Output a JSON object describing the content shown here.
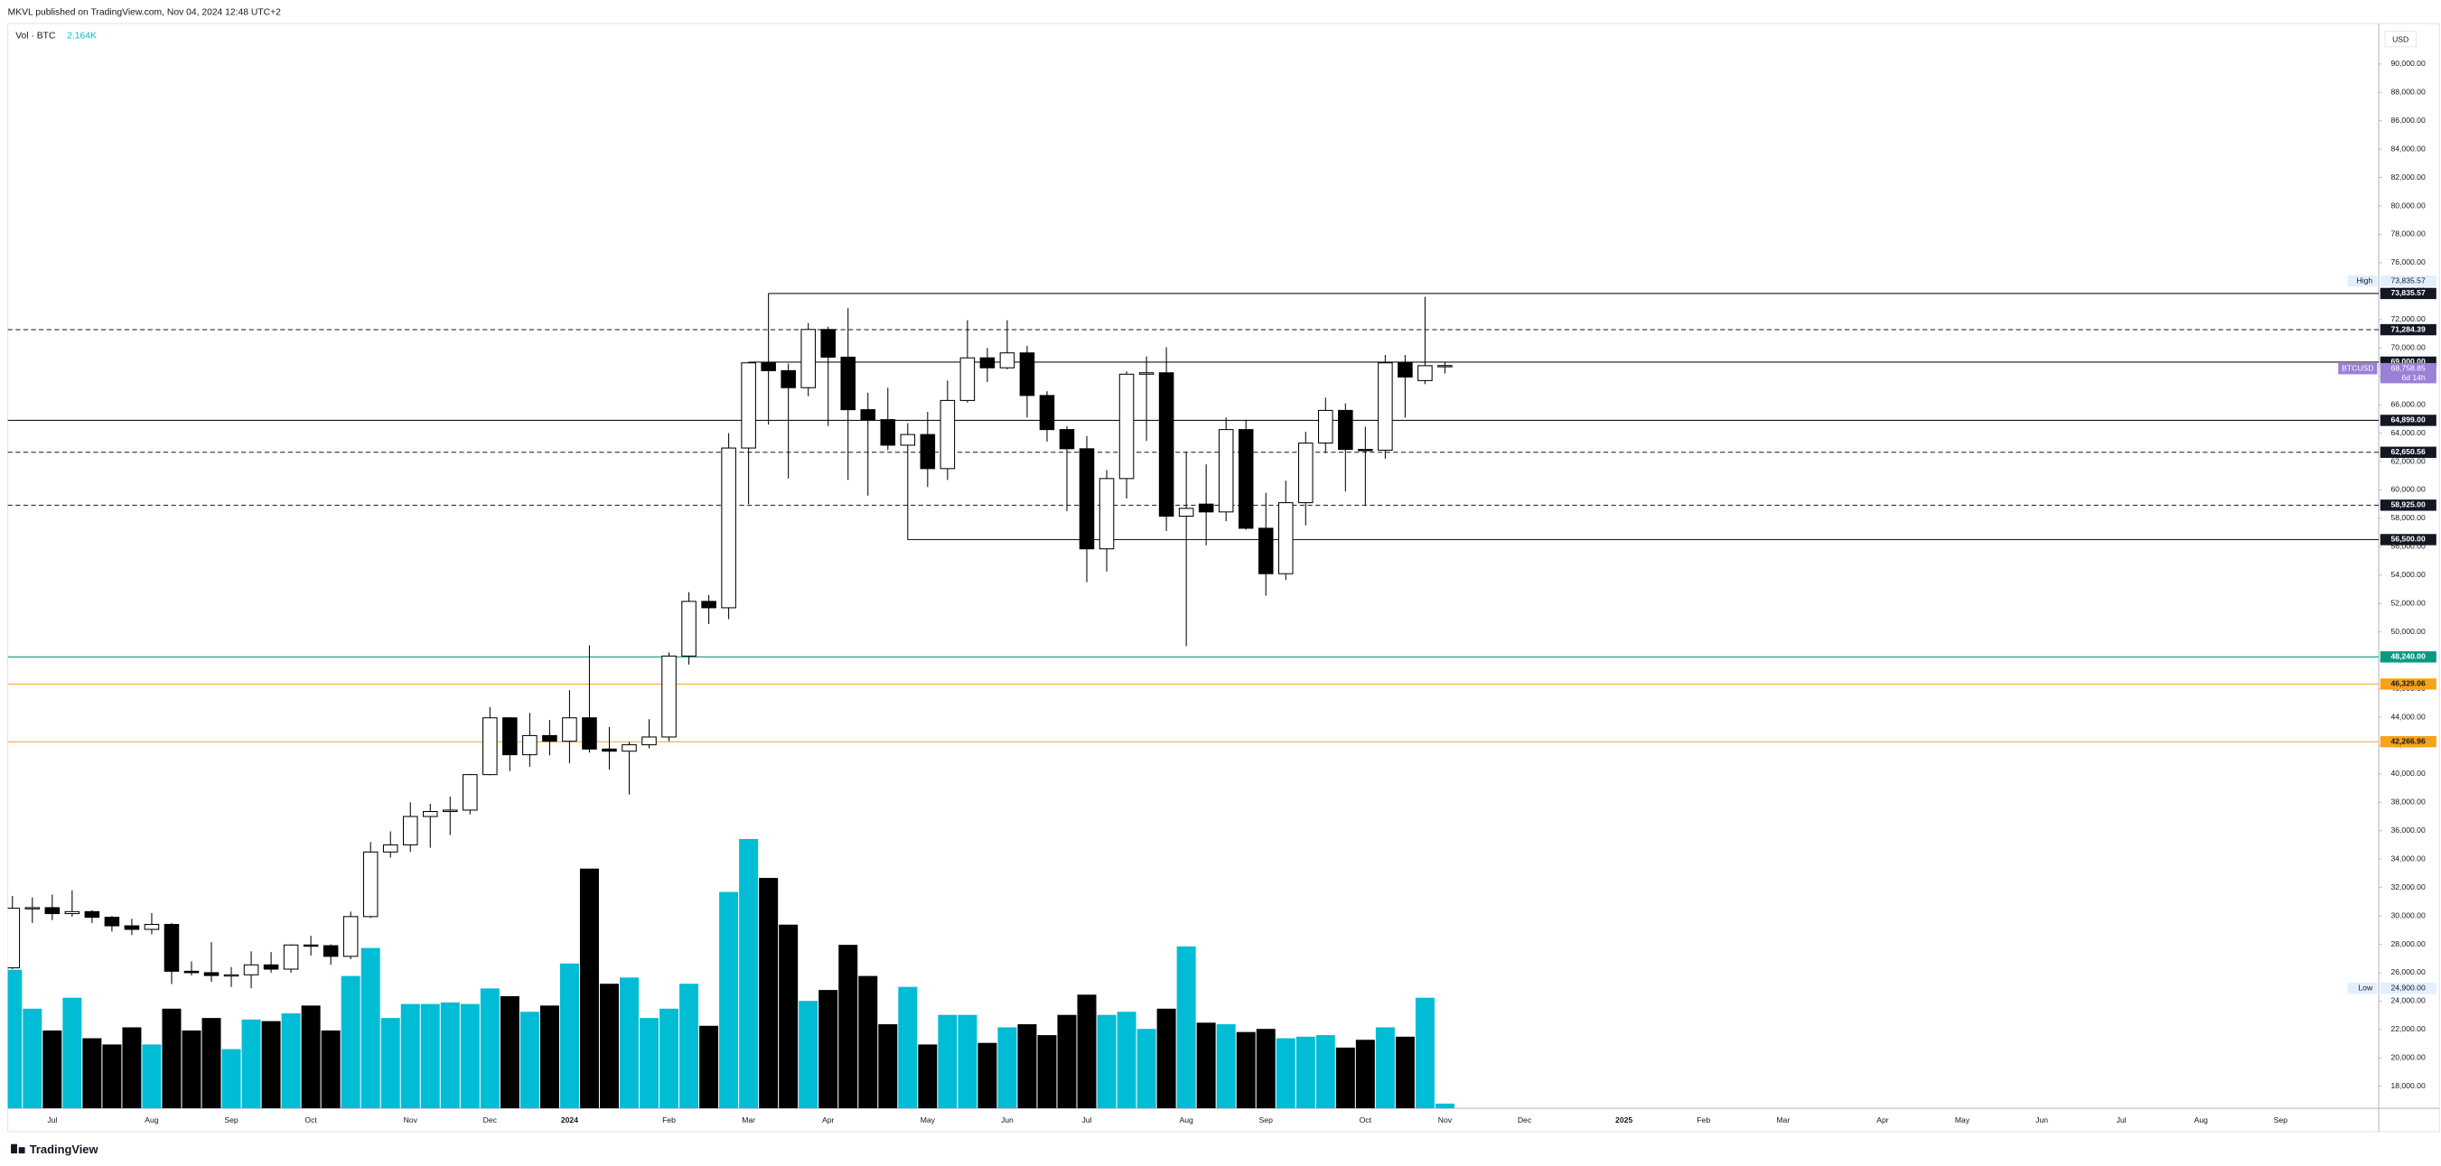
{
  "header": {
    "publisher": "MKVL published on TradingView.com, Nov 04, 2024 12:48 UTC+2",
    "currency": "USD",
    "footer": "TradingView"
  },
  "chart_data": {
    "type": "candlestick",
    "categories": [
      null,
      null,
      "Jul",
      null,
      null,
      null,
      null,
      "Aug",
      null,
      null,
      null,
      "Sep",
      null,
      null,
      null,
      "Oct",
      null,
      null,
      null,
      null,
      "Nov",
      null,
      null,
      null,
      "Dec",
      null,
      null,
      null,
      "2024",
      null,
      null,
      null,
      null,
      "Feb",
      null,
      null,
      null,
      "Mar",
      null,
      null,
      null,
      "Apr",
      null,
      null,
      null,
      null,
      "May",
      null,
      null,
      null,
      "Jun",
      null,
      null,
      null,
      "Jul",
      null,
      null,
      null,
      null,
      "Aug",
      null,
      null,
      null,
      "Sep",
      null,
      null,
      null,
      null,
      "Oct",
      null,
      null,
      null,
      "Nov",
      null,
      null,
      null,
      "Dec",
      null,
      null,
      null,
      null,
      "2025",
      null,
      null,
      null,
      "Feb",
      null,
      null,
      null,
      "Mar",
      null,
      null,
      null,
      null,
      "Apr",
      null,
      null,
      null,
      "May",
      null,
      null,
      null,
      "Jun",
      null,
      null,
      null,
      "Jul",
      null,
      null,
      null,
      "Aug",
      null,
      null,
      null,
      "Sep",
      null,
      null,
      null,
      null,
      null
    ],
    "open": [
      26340,
      30540,
      30580,
      30160,
      30300,
      29900,
      29300,
      29050,
      29400,
      26100,
      26000,
      25800,
      25850,
      26550,
      26250,
      27950,
      27900,
      27150,
      29950,
      34500,
      35000,
      37000,
      37350,
      37450,
      39950,
      43950,
      41350,
      42700,
      42300,
      43950,
      41750,
      41600,
      42050,
      42600,
      48300,
      52150,
      51700,
      62950,
      68950,
      68400,
      67200,
      71300,
      69350,
      65650,
      64950,
      63150,
      63900,
      61500,
      66300,
      69300,
      68600,
      69650,
      66650,
      64250,
      62900,
      55850,
      60800,
      68150,
      68250,
      58150,
      59000,
      58450,
      64250,
      57300,
      54100,
      59100,
      63300,
      65600,
      62850,
      62800,
      68950,
      67700,
      68750,
      null,
      null,
      null,
      null,
      null,
      null,
      null,
      null,
      null,
      null,
      null,
      null,
      null,
      null,
      null,
      null,
      null,
      null,
      null,
      null,
      null,
      null,
      null,
      null,
      null,
      null,
      null,
      null,
      null,
      null,
      null,
      null,
      null,
      null,
      null,
      null,
      null,
      null,
      null,
      null,
      null,
      null,
      null,
      null,
      null,
      null,
      null
    ],
    "high": [
      31400,
      31300,
      31500,
      31800,
      30400,
      30000,
      29800,
      30200,
      29500,
      26800,
      28150,
      26400,
      27500,
      27450,
      28000,
      28600,
      28000,
      30300,
      35200,
      35950,
      38000,
      37900,
      38400,
      40000,
      44700,
      44000,
      44300,
      43800,
      45900,
      49050,
      43300,
      42250,
      43850,
      48550,
      52800,
      52600,
      64000,
      69000,
      73835.57,
      68900,
      71750,
      71500,
      72800,
      66850,
      67200,
      64700,
      65500,
      67700,
      71950,
      70000,
      71950,
      70150,
      66950,
      64500,
      63800,
      61400,
      68350,
      69400,
      70050,
      62700,
      61800,
      65100,
      64950,
      59800,
      60650,
      64100,
      66500,
      66100,
      64450,
      69500,
      69500,
      73600,
      69000,
      null,
      null,
      null,
      null,
      null,
      null,
      null,
      null,
      null,
      null,
      null,
      null,
      null,
      null,
      null,
      null,
      null,
      null,
      null,
      null,
      null,
      null,
      null,
      null,
      null,
      null,
      null,
      null,
      null,
      null,
      null,
      null,
      null,
      null,
      null,
      null,
      null,
      null,
      null,
      null,
      null,
      null,
      null,
      null,
      null,
      null,
      null
    ],
    "low": [
      26260,
      29500,
      29700,
      29950,
      29500,
      28900,
      28650,
      28700,
      25200,
      25800,
      25350,
      25000,
      24900,
      26000,
      26000,
      27200,
      26550,
      26950,
      29850,
      34100,
      34500,
      34800,
      35700,
      37150,
      39900,
      40200,
      40500,
      41300,
      40750,
      41500,
      40300,
      38550,
      41800,
      42300,
      47700,
      50550,
      50900,
      59000,
      64600,
      60800,
      66600,
      64500,
      60700,
      59600,
      62800,
      56500,
      60200,
      60700,
      66150,
      67600,
      68500,
      65100,
      63400,
      58500,
      53500,
      54250,
      59400,
      63450,
      57100,
      49000,
      56100,
      57800,
      57200,
      52550,
      53650,
      57500,
      62600,
      59900,
      58900,
      62200,
      65100,
      67450,
      68200,
      null,
      null,
      null,
      null,
      null,
      null,
      null,
      null,
      null,
      null,
      null,
      null,
      null,
      null,
      null,
      null,
      null,
      null,
      null,
      null,
      null,
      null,
      null,
      null,
      null,
      null,
      null,
      null,
      null,
      null,
      null,
      null,
      null,
      null,
      null,
      null,
      null,
      null,
      null,
      null,
      null,
      null,
      null,
      null,
      null,
      null,
      null
    ],
    "close": [
      30540,
      30580,
      30160,
      30300,
      29900,
      29300,
      29050,
      29400,
      26100,
      26000,
      25800,
      25850,
      26550,
      26250,
      27950,
      27900,
      27150,
      29950,
      34500,
      35000,
      37000,
      37350,
      37450,
      39950,
      43950,
      41350,
      42700,
      42300,
      43950,
      41750,
      41600,
      42050,
      42600,
      48300,
      52150,
      51700,
      62950,
      68950,
      68400,
      67200,
      71300,
      69350,
      65650,
      64950,
      63150,
      63900,
      61500,
      66300,
      69300,
      68600,
      69650,
      66650,
      64250,
      62900,
      55850,
      60800,
      68150,
      68250,
      58150,
      58700,
      58450,
      64250,
      57300,
      54100,
      59100,
      63300,
      65600,
      62850,
      62800,
      68950,
      67950,
      68750,
      68758.85,
      null,
      null,
      null,
      null,
      null,
      null,
      null,
      null,
      null,
      null,
      null,
      null,
      null,
      null,
      null,
      null,
      null,
      null,
      null,
      null,
      null,
      null,
      null,
      null,
      null,
      null,
      null,
      null,
      null,
      null,
      null,
      null,
      null,
      null,
      null,
      null,
      null,
      null,
      null,
      null,
      null,
      null,
      null,
      null,
      null,
      null,
      null
    ],
    "up_color": "#ffffff",
    "down_color": "#000000",
    "border_color": "#000000",
    "volume": {
      "name": "Vol · BTC",
      "up_color": "#00bcd4",
      "down_color": "#000000",
      "values": [
        64080,
        46080,
        36000,
        51120,
        32400,
        29520,
        37440,
        29520,
        46080,
        36000,
        41760,
        27360,
        41040,
        40320,
        43920,
        47520,
        36000,
        61200,
        74160,
        41760,
        48240,
        48240,
        48960,
        48240,
        55440,
        51840,
        44640,
        47520,
        66960,
        110880,
        57600,
        60480,
        41760,
        46080,
        57600,
        38160,
        100080,
        124560,
        106560,
        84960,
        49680,
        54720,
        75600,
        61200,
        38880,
        56160,
        29520,
        43200,
        43200,
        30240,
        37440,
        38880,
        33840,
        43200,
        52560,
        43200,
        44640,
        36720,
        46080,
        74880,
        39600,
        38880,
        35280,
        36720,
        32400,
        33120,
        33840,
        28080,
        31680,
        37440,
        33120,
        51120,
        2164,
        null,
        null,
        null,
        null,
        null,
        null,
        null,
        null,
        null,
        null,
        null,
        null,
        null,
        null,
        null,
        null,
        null,
        null,
        null,
        null,
        null,
        null,
        null,
        null,
        null,
        null,
        null,
        null,
        null,
        null,
        null,
        null,
        null,
        null,
        null,
        null,
        null,
        null,
        null,
        null,
        null,
        null,
        null,
        null,
        null,
        null,
        null
      ],
      "value_labels": [
        null,
        null,
        null,
        null,
        null,
        null,
        null,
        null,
        null,
        null,
        null,
        null,
        null,
        null,
        null,
        null,
        null,
        null,
        null,
        null,
        null,
        null,
        null,
        null,
        null,
        null,
        null,
        null,
        null,
        null,
        null,
        null,
        null,
        null,
        null,
        null,
        null,
        null,
        null,
        null,
        null,
        null,
        null,
        null,
        null,
        null,
        null,
        null,
        null,
        null,
        null,
        null,
        null,
        null,
        null,
        null,
        null,
        null,
        null,
        null,
        null,
        null,
        null,
        null,
        null,
        null,
        null,
        null,
        null,
        null,
        null,
        null,
        "2.164K",
        null,
        null,
        null,
        null,
        null,
        null,
        null,
        null,
        null,
        null,
        null,
        null,
        null,
        null,
        null,
        null,
        null,
        null,
        null,
        null,
        null,
        null,
        null,
        null,
        null,
        null,
        null,
        null,
        null,
        null,
        null,
        null,
        null,
        null,
        null,
        null,
        null,
        null,
        null,
        null,
        null,
        null,
        null,
        null,
        null,
        null,
        null
      ],
      "label_color": "#00bcd4"
    },
    "ylim": [
      16450,
      92850
    ],
    "yticks": [
      {
        "value": 18000,
        "label": "18,000.00"
      },
      {
        "value": 20000,
        "label": "20,000.00"
      },
      {
        "value": 22000,
        "label": "22,000.00"
      },
      {
        "value": 24000,
        "label": "24,000.00"
      },
      {
        "value": 26000,
        "label": "26,000.00"
      },
      {
        "value": 28000,
        "label": "28,000.00"
      },
      {
        "value": 30000,
        "label": "30,000.00"
      },
      {
        "value": 32000,
        "label": "32,000.00"
      },
      {
        "value": 34000,
        "label": "34,000.00"
      },
      {
        "value": 36000,
        "label": "36,000.00"
      },
      {
        "value": 38000,
        "label": "38,000.00"
      },
      {
        "value": 40000,
        "label": "40,000.00"
      },
      {
        "value": 42000,
        "label": "42,000.00"
      },
      {
        "value": 44000,
        "label": "44,000.00"
      },
      {
        "value": 46000,
        "label": "46,000.00"
      },
      {
        "value": 48000,
        "label": "48,000.00"
      },
      {
        "value": 50000,
        "label": "50,000.00"
      },
      {
        "value": 52000,
        "label": "52,000.00"
      },
      {
        "value": 54000,
        "label": "54,000.00"
      },
      {
        "value": 56000,
        "label": "56,000.00"
      },
      {
        "value": 58000,
        "label": "58,000.00"
      },
      {
        "value": 60000,
        "label": "60,000.00"
      },
      {
        "value": 62000,
        "label": "62,000.00"
      },
      {
        "value": 64000,
        "label": "64,000.00"
      },
      {
        "value": 66000,
        "label": "66,000.00"
      },
      {
        "value": 68000,
        "label": "68,000.00"
      },
      {
        "value": 70000,
        "label": "70,000.00"
      },
      {
        "value": 72000,
        "label": "72,000.00"
      },
      {
        "value": 74000,
        "label": "74,000.00"
      },
      {
        "value": 76000,
        "label": "76,000.00"
      },
      {
        "value": 78000,
        "label": "78,000.00"
      },
      {
        "value": 80000,
        "label": "80,000.00"
      },
      {
        "value": 82000,
        "label": "82,000.00"
      },
      {
        "value": 84000,
        "label": "84,000.00"
      },
      {
        "value": 86000,
        "label": "86,000.00"
      },
      {
        "value": 88000,
        "label": "88,000.00"
      },
      {
        "value": 90000,
        "label": "90,000.00"
      }
    ],
    "grid": false,
    "levels": [
      {
        "value": 73835.57,
        "label": "73,835.57",
        "style": "solid",
        "color": "#131722",
        "label_bg": "#131722",
        "label_color": "#ffffff"
      },
      {
        "value": 71284.39,
        "label": "71,284.39",
        "style": "dashed",
        "color": "#131722",
        "label_bg": "#131722",
        "label_color": "#ffffff"
      },
      {
        "value": 69000,
        "label": "69,000.00",
        "style": "solid",
        "color": "#131722",
        "label_bg": "#131722",
        "label_color": "#ffffff"
      },
      {
        "value": 64899,
        "label": "64,899.00",
        "style": "solid",
        "color": "#131722",
        "label_bg": "#131722",
        "label_color": "#ffffff"
      },
      {
        "value": 62650.56,
        "label": "62,650.56",
        "style": "dashed",
        "color": "#131722",
        "label_bg": "#131722",
        "label_color": "#ffffff"
      },
      {
        "value": 58925,
        "label": "58,925.00",
        "style": "dashed",
        "color": "#131722",
        "label_bg": "#131722",
        "label_color": "#ffffff"
      },
      {
        "value": 56500,
        "label": "56,500.00",
        "style": "solid",
        "color": "#131722",
        "label_bg": "#131722",
        "label_color": "#ffffff"
      },
      {
        "value": 48240,
        "label": "48,240.00",
        "style": "solid",
        "color": "#089981",
        "label_bg": "#089981",
        "label_color": "#ffffff"
      },
      {
        "value": 46329.06,
        "label": "46,329.06",
        "style": "solid",
        "color": "#f7a21b",
        "label_bg": "#f7a21b",
        "label_color": "#131722"
      },
      {
        "value": 42266.96,
        "label": "42,266.96",
        "style": "solid",
        "color": "#f7a21b",
        "label_bg": "#f7a21b",
        "label_color": "#131722"
      }
    ],
    "high_marker": {
      "name": "High",
      "value": 73835.57,
      "label": "73,835.57"
    },
    "low_marker": {
      "name": "Low",
      "value": 24900,
      "label": "24,900.00"
    },
    "last_price": {
      "name": "BTCUSD",
      "value": 68758.85,
      "label": "68,758.85",
      "countdown": "6d 14h",
      "color": "#9c7fd6"
    }
  }
}
